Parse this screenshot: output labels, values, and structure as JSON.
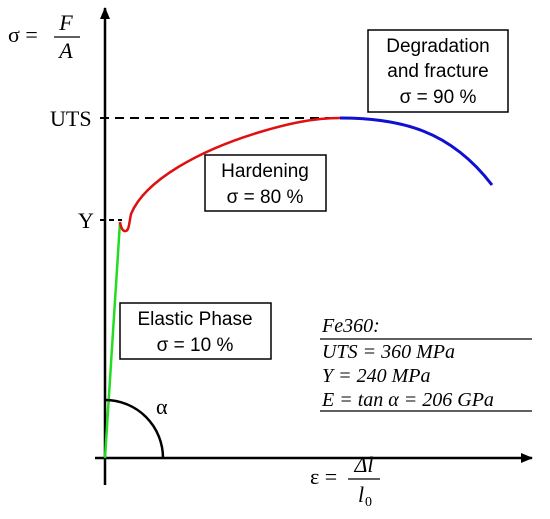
{
  "y_axis_label": {
    "lhs": "σ =",
    "numerator": "F",
    "denominator": "A"
  },
  "x_axis_label": {
    "lhs": "ε =",
    "numerator": "Δl",
    "denominator": "l",
    "denominator_subscript": "0"
  },
  "levels": {
    "uts": "UTS",
    "yield": "Y"
  },
  "angle_label": "α",
  "phases": [
    {
      "title_lines": [
        "Degradation",
        "and fracture"
      ],
      "note": "σ = 90 %"
    },
    {
      "title_lines": [
        "Hardening"
      ],
      "note": "σ = 80 %"
    },
    {
      "title_lines": [
        "Elastic Phase"
      ],
      "note": "σ = 10 %"
    }
  ],
  "material": {
    "name": "Fe360:",
    "lines": [
      "UTS = 360 MPa",
      "Y = 240 MPa",
      "E = tan α = 206 GPa"
    ]
  }
}
